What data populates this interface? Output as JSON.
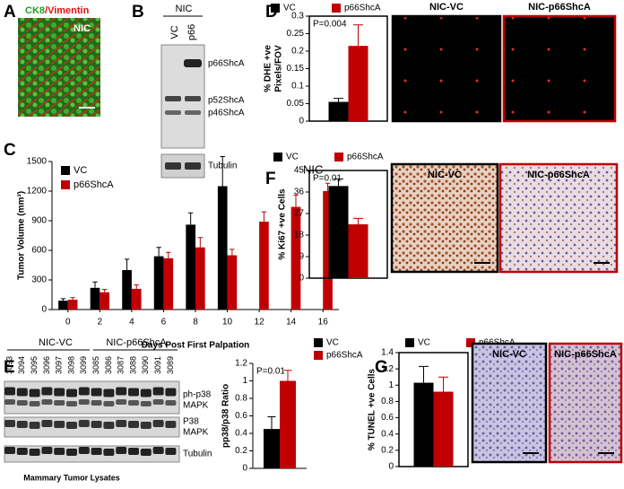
{
  "chart_data": [
    {
      "panel": "C",
      "type": "bar",
      "annotation": "NIC",
      "ylabel": "Tumor Volume (mm³)",
      "xlabel": "Days Post First Palpation",
      "legend": "upper left",
      "categories": [
        "0",
        "2",
        "4",
        "6",
        "8",
        "10",
        "12",
        "14",
        "16"
      ],
      "series": [
        {
          "name": "VC",
          "color": "#000000",
          "values": [
            90,
            220,
            400,
            540,
            860,
            1250,
            null,
            null,
            null
          ],
          "errors": [
            20,
            60,
            110,
            90,
            120,
            300,
            null,
            null,
            null
          ]
        },
        {
          "name": "p66ShcA",
          "color": "#c00000",
          "values": [
            100,
            175,
            210,
            520,
            630,
            550,
            890,
            1040,
            1200
          ],
          "errors": [
            20,
            30,
            40,
            60,
            100,
            60,
            100,
            120,
            80
          ]
        }
      ],
      "ylim": [
        0,
        1500
      ],
      "yticks": [
        0,
        300,
        600,
        900,
        1200,
        1500
      ]
    },
    {
      "panel": "D",
      "type": "bar",
      "annotation": "P=0.004",
      "ylabel": [
        "% DHE +ve",
        "Pixels/FOV"
      ],
      "legend": "top",
      "image_titles": [
        "NIC-VC",
        "NIC-p66ShcA"
      ],
      "categories": [
        null
      ],
      "series": [
        {
          "name": "VC",
          "color": "#000000",
          "values": [
            0.055
          ],
          "errors": [
            0.01
          ]
        },
        {
          "name": "p66ShcA",
          "color": "#c00000",
          "values": [
            0.215
          ],
          "errors": [
            0.06
          ]
        }
      ],
      "ylim": [
        0,
        0.3
      ],
      "yticks": [
        0,
        0.05,
        0.1,
        0.15,
        0.2,
        0.25,
        0.3
      ]
    },
    {
      "panel": "E",
      "type": "bar",
      "annotation": "P=0.01",
      "ylabel": "pp38/p38 Ratio",
      "legend": "upper right",
      "categories": [
        null
      ],
      "series": [
        {
          "name": "VC",
          "color": "#000000",
          "values": [
            0.45
          ],
          "errors": [
            0.14
          ]
        },
        {
          "name": "p66ShcA",
          "color": "#c00000",
          "values": [
            1.0
          ],
          "errors": [
            0.12
          ]
        }
      ],
      "ylim": [
        0,
        1.2
      ],
      "yticks": [
        0,
        0.2,
        0.4,
        0.6,
        0.8,
        1,
        1.2
      ]
    },
    {
      "panel": "F",
      "type": "bar",
      "annotation": "P=0.01",
      "ylabel": "% Ki67 +ve Cells",
      "legend": "top",
      "image_titles": [
        "NIC-VC",
        "NIC-p66ShcA"
      ],
      "categories": [
        null
      ],
      "series": [
        {
          "name": "VC",
          "color": "#000000",
          "values": [
            38.5
          ],
          "errors": [
            3
          ]
        },
        {
          "name": "p66ShcA",
          "color": "#c00000",
          "values": [
            22.5
          ],
          "errors": [
            2.5
          ]
        }
      ],
      "ylim": [
        0,
        45
      ],
      "yticks": [
        0,
        9,
        18,
        27,
        36,
        45
      ]
    },
    {
      "panel": "G",
      "type": "bar",
      "ylabel": "% TUNEL +ve Cells",
      "legend": "top",
      "image_titles": [
        "NIC-VC",
        "NIC-p66ShcA"
      ],
      "categories": [
        null
      ],
      "series": [
        {
          "name": "VC",
          "color": "#000000",
          "values": [
            1.03
          ],
          "errors": [
            0.2
          ]
        },
        {
          "name": "p66ShcA",
          "color": "#c00000",
          "values": [
            0.92
          ],
          "errors": [
            0.18
          ]
        }
      ],
      "ylim": [
        0,
        1.4
      ],
      "yticks": [
        0,
        0.2,
        0.4,
        0.6,
        0.8,
        1,
        1.2,
        1.4
      ]
    }
  ],
  "panel_a": {
    "panel": "A",
    "stain_green": "CK8",
    "stain_red": "/Vimentin",
    "tag": "NIC"
  },
  "panel_b": {
    "panel": "B",
    "group": "NIC",
    "lanes": [
      "VC",
      "p66"
    ],
    "bands": [
      "p66ShcA",
      "p52ShcA",
      "p46ShcA",
      "Tubulin"
    ]
  },
  "panel_e_blot": {
    "groups": [
      "NIC-VC",
      "NIC-p66ShcA"
    ],
    "lanes": [
      "3093",
      "3094",
      "3095",
      "3096",
      "3097",
      "3098",
      "3099",
      "3085",
      "3086",
      "3087",
      "3088",
      "3090",
      "3091",
      "3089"
    ],
    "bands": [
      [
        "ph-p38",
        "MAPK"
      ],
      [
        "P38",
        "MAPK"
      ],
      [
        "Tubulin"
      ]
    ],
    "caption": "Mammary Tumor Lysates"
  }
}
